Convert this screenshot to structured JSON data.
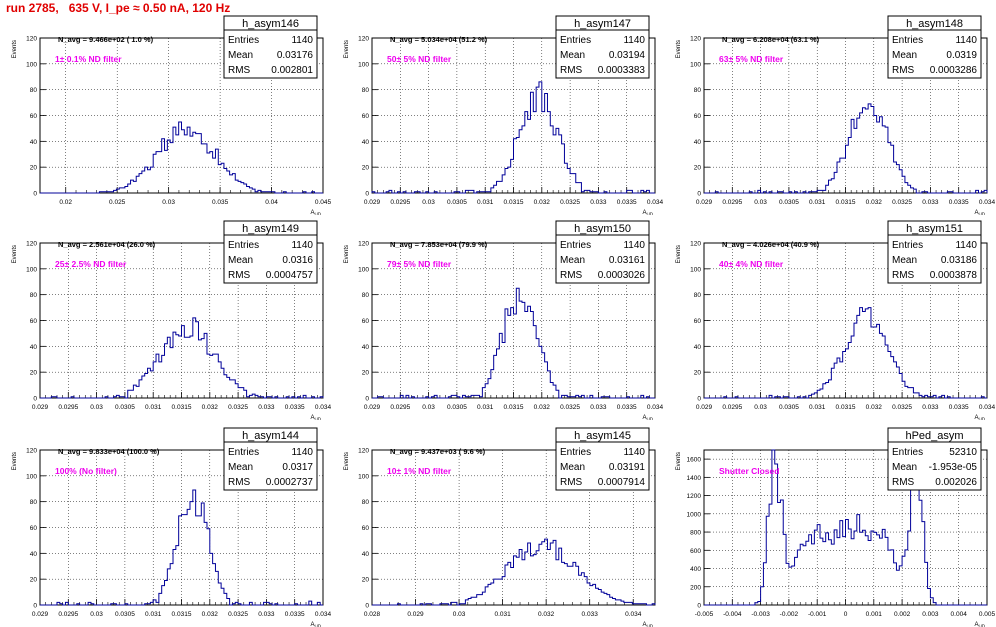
{
  "page_title": "run 2785,   635 V, I_pe ≈ 0.50 nA, 120 Hz",
  "colors": {
    "histogram": "#000099",
    "grid": "#000000",
    "annotation": "#ee00ee",
    "title_text": "#e00000"
  },
  "chart_data": [
    {
      "type": "histogram",
      "name": "h_asym146",
      "ylabel": "Events",
      "xlabel": "A_UD",
      "xlim": [
        0.0175,
        0.045
      ],
      "ylim": [
        0,
        120
      ],
      "xticks": [
        "0.02",
        "0.025",
        "0.03",
        "0.035",
        "0.04",
        "0.045"
      ],
      "xtick_values": [
        0.02,
        0.025,
        0.03,
        0.035,
        0.04,
        0.045
      ],
      "yticks": [
        0,
        20,
        40,
        60,
        80,
        100,
        120
      ],
      "stats": [
        {
          "label": "Entries",
          "value": "1140"
        },
        {
          "label": "Mean",
          "value": "0.03176"
        },
        {
          "label": "RMS",
          "value": "0.002801"
        }
      ],
      "header": "N_avg = 9.466e+02 ( 1.0 %)",
      "annotation": "1± 0.1% ND filter",
      "peak": 50
    },
    {
      "type": "histogram",
      "name": "h_asym147",
      "ylabel": "Events",
      "xlabel": "A_UD",
      "xlim": [
        0.029,
        0.034
      ],
      "ylim": [
        0,
        120
      ],
      "xticks": [
        "0.029",
        "0.0295",
        "0.03",
        "0.0305",
        "0.031",
        "0.0315",
        "0.032",
        "0.0325",
        "0.033",
        "0.0335",
        "0.034"
      ],
      "xtick_values": [
        0.029,
        0.0295,
        0.03,
        0.0305,
        0.031,
        0.0315,
        0.032,
        0.0325,
        0.033,
        0.0335,
        0.034
      ],
      "yticks": [
        0,
        20,
        40,
        60,
        80,
        100,
        120
      ],
      "stats": [
        {
          "label": "Entries",
          "value": "1140"
        },
        {
          "label": "Mean",
          "value": "0.03194"
        },
        {
          "label": "RMS",
          "value": "0.0003383"
        }
      ],
      "header": "N_avg = 5.034e+04 (51.2 %)",
      "annotation": "50± 5% ND filter",
      "peak": 76
    },
    {
      "type": "histogram",
      "name": "h_asym148",
      "ylabel": "Events",
      "xlabel": "A_UD",
      "xlim": [
        0.029,
        0.034
      ],
      "ylim": [
        0,
        120
      ],
      "xticks": [
        "0.029",
        "0.0295",
        "0.03",
        "0.0305",
        "0.031",
        "0.0315",
        "0.032",
        "0.0325",
        "0.033",
        "0.0335",
        "0.034"
      ],
      "xtick_values": [
        0.029,
        0.0295,
        0.03,
        0.0305,
        0.031,
        0.0315,
        0.032,
        0.0325,
        0.033,
        0.0335,
        0.034
      ],
      "yticks": [
        0,
        20,
        40,
        60,
        80,
        100,
        120
      ],
      "stats": [
        {
          "label": "Entries",
          "value": "1140"
        },
        {
          "label": "Mean",
          "value": "0.0319"
        },
        {
          "label": "RMS",
          "value": "0.0003286"
        }
      ],
      "header": "N_avg = 6.208e+04 (63.1 %)",
      "annotation": "63± 5% ND filter",
      "peak": 74
    },
    {
      "type": "histogram",
      "name": "h_asym149",
      "ylabel": "Events",
      "xlabel": "A_UD",
      "xlim": [
        0.029,
        0.034
      ],
      "ylim": [
        0,
        120
      ],
      "xticks": [
        "0.029",
        "0.0295",
        "0.03",
        "0.0305",
        "0.031",
        "0.0315",
        "0.032",
        "0.0325",
        "0.033",
        "0.0335",
        "0.034"
      ],
      "xtick_values": [
        0.029,
        0.0295,
        0.03,
        0.0305,
        0.031,
        0.0315,
        0.032,
        0.0325,
        0.033,
        0.0335,
        0.034
      ],
      "yticks": [
        0,
        20,
        40,
        60,
        80,
        100,
        120
      ],
      "stats": [
        {
          "label": "Entries",
          "value": "1140"
        },
        {
          "label": "Mean",
          "value": "0.0316"
        },
        {
          "label": "RMS",
          "value": "0.0004757"
        }
      ],
      "header": "N_avg = 2.561e+04 (26.0 %)",
      "annotation": "25± 2.5% ND filter",
      "peak": 55
    },
    {
      "type": "histogram",
      "name": "h_asym150",
      "ylabel": "Events",
      "xlabel": "A_UD",
      "xlim": [
        0.029,
        0.034
      ],
      "ylim": [
        0,
        120
      ],
      "xticks": [
        "0.029",
        "0.0295",
        "0.03",
        "0.0305",
        "0.031",
        "0.0315",
        "0.032",
        "0.0325",
        "0.033",
        "0.0335",
        "0.034"
      ],
      "xtick_values": [
        0.029,
        0.0295,
        0.03,
        0.0305,
        0.031,
        0.0315,
        0.032,
        0.0325,
        0.033,
        0.0335,
        0.034
      ],
      "yticks": [
        0,
        20,
        40,
        60,
        80,
        100,
        120
      ],
      "stats": [
        {
          "label": "Entries",
          "value": "1140"
        },
        {
          "label": "Mean",
          "value": "0.03161"
        },
        {
          "label": "RMS",
          "value": "0.0003026"
        }
      ],
      "header": "N_avg = 7.853e+04 (79.9 %)",
      "annotation": "79± 5% ND filter",
      "peak": 80
    },
    {
      "type": "histogram",
      "name": "h_asym151",
      "ylabel": "Events",
      "xlabel": "A_UD",
      "xlim": [
        0.029,
        0.034
      ],
      "ylim": [
        0,
        120
      ],
      "xticks": [
        "0.029",
        "0.0295",
        "0.03",
        "0.0305",
        "0.031",
        "0.0315",
        "0.032",
        "0.0325",
        "0.033",
        "0.0335",
        "0.034"
      ],
      "xtick_values": [
        0.029,
        0.0295,
        0.03,
        0.0305,
        0.031,
        0.0315,
        0.032,
        0.0325,
        0.033,
        0.0335,
        0.034
      ],
      "yticks": [
        0,
        20,
        40,
        60,
        80,
        100,
        120
      ],
      "stats": [
        {
          "label": "Entries",
          "value": "1140"
        },
        {
          "label": "Mean",
          "value": "0.03186"
        },
        {
          "label": "RMS",
          "value": "0.0003878"
        }
      ],
      "header": "N_avg = 4.026e+04 (40.9 %)",
      "annotation": "40± 4% ND filter",
      "peak": 61
    },
    {
      "type": "histogram",
      "name": "h_asym144",
      "ylabel": "Events",
      "xlabel": "A_UD",
      "xlim": [
        0.029,
        0.034
      ],
      "ylim": [
        0,
        120
      ],
      "xticks": [
        "0.029",
        "0.0295",
        "0.03",
        "0.0305",
        "0.031",
        "0.0315",
        "0.032",
        "0.0325",
        "0.033",
        "0.0335",
        "0.034"
      ],
      "xtick_values": [
        0.029,
        0.0295,
        0.03,
        0.0305,
        0.031,
        0.0315,
        0.032,
        0.0325,
        0.033,
        0.0335,
        0.034
      ],
      "yticks": [
        0,
        20,
        40,
        60,
        80,
        100,
        120
      ],
      "stats": [
        {
          "label": "Entries",
          "value": "1140"
        },
        {
          "label": "Mean",
          "value": "0.0317"
        },
        {
          "label": "RMS",
          "value": "0.0002737"
        }
      ],
      "header": "N_avg = 9.833e+04 (100.0 %)",
      "annotation": "100% (No filter)",
      "peak": 84
    },
    {
      "type": "histogram",
      "name": "h_asym145",
      "ylabel": "Events",
      "xlabel": "A_UD",
      "xlim": [
        0.028,
        0.0345
      ],
      "ylim": [
        0,
        120
      ],
      "xticks": [
        "0.028",
        "0.029",
        "0.03",
        "0.031",
        "0.032",
        "0.033",
        "0.034"
      ],
      "xtick_values": [
        0.028,
        0.029,
        0.03,
        0.031,
        0.032,
        0.033,
        0.034
      ],
      "yticks": [
        0,
        20,
        40,
        60,
        80,
        100,
        120
      ],
      "stats": [
        {
          "label": "Entries",
          "value": "1140"
        },
        {
          "label": "Mean",
          "value": "0.03191"
        },
        {
          "label": "RMS",
          "value": "0.0007914"
        }
      ],
      "header": "N_avg = 9.437e+03 ( 9.6 %)",
      "annotation": "10± 1% ND filter",
      "peak": 45
    },
    {
      "type": "histogram",
      "name": "hPed_asym",
      "ylabel": "Events",
      "xlabel": "A_UD",
      "xlim": [
        -0.005,
        0.005
      ],
      "ylim": [
        0,
        1700
      ],
      "xticks": [
        "-0.005",
        "-0.004",
        "-0.003",
        "-0.002",
        "-0.001",
        "0",
        "0.001",
        "0.002",
        "0.003",
        "0.004",
        "0.005"
      ],
      "xtick_values": [
        -0.005,
        -0.004,
        -0.003,
        -0.002,
        -0.001,
        0,
        0.001,
        0.002,
        0.003,
        0.004,
        0.005
      ],
      "yticks": [
        0,
        200,
        400,
        600,
        800,
        1000,
        1200,
        1400,
        1600
      ],
      "stats": [
        {
          "label": "Entries",
          "value": "52310"
        },
        {
          "label": "Mean",
          "value": "-1.953e-05"
        },
        {
          "label": "RMS",
          "value": "0.002026"
        }
      ],
      "header": "",
      "annotation": "Shutter Closed",
      "peak": 1560
    }
  ]
}
